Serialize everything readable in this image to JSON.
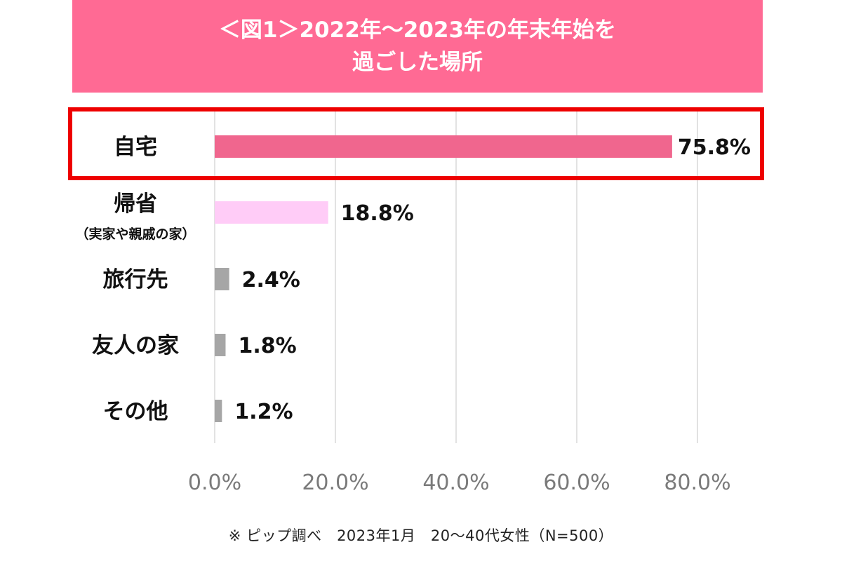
{
  "title": {
    "line1": "＜図1＞2022年～2023年の年末年始を",
    "line2": "過ごした場所"
  },
  "colors": {
    "banner": "#ff6a94",
    "highlight_frame": "#ee0000",
    "series": [
      "#f0668e",
      "#ffccf7",
      "#a6a6a6",
      "#a6a6a6",
      "#a6a6a6"
    ],
    "grid": "#d9d9d9",
    "tick_text": "#7a7a7a"
  },
  "chart_data": {
    "type": "bar",
    "orientation": "horizontal",
    "categories": [
      "自宅",
      "帰省",
      "旅行先",
      "友人の家",
      "その他"
    ],
    "category_sublabels": [
      "",
      "（実家や親戚の家）",
      "",
      "",
      ""
    ],
    "values": [
      75.8,
      18.8,
      2.4,
      1.8,
      1.2
    ],
    "value_labels": [
      "75.8%",
      "18.8%",
      "2.4%",
      "1.8%",
      "1.2%"
    ],
    "xlim": [
      0,
      80
    ],
    "x_ticks": [
      0,
      20,
      40,
      60,
      80
    ],
    "x_tick_labels": [
      "0.0%",
      "20.0%",
      "40.0%",
      "60.0%",
      "80.0%"
    ],
    "grid": true,
    "highlighted_category": "自宅",
    "title": "＜図1＞2022年～2023年の年末年始を過ごした場所"
  },
  "footnote": "※ ピップ調べ　2023年1月　20～40代女性（N=500）"
}
